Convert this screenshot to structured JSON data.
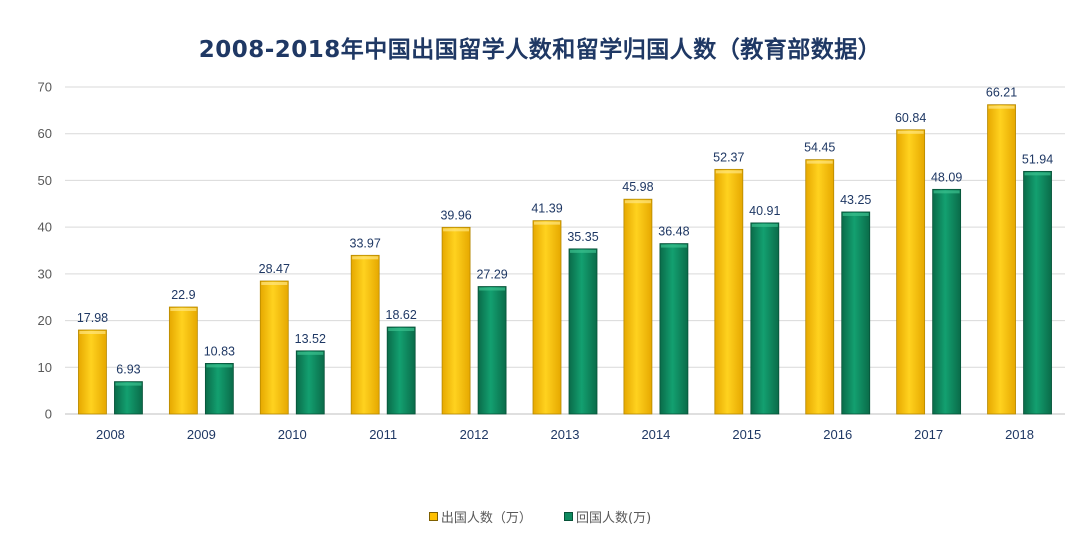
{
  "chart_data": {
    "type": "bar",
    "title": "2008-2018年中国出国留学人数和留学归国人数（教育部数据）",
    "categories": [
      "2008",
      "2009",
      "2010",
      "2011",
      "2012",
      "2013",
      "2014",
      "2015",
      "2016",
      "2017",
      "2018"
    ],
    "series": [
      {
        "name": "出国人数（万）",
        "color": "#FFC000",
        "values": [
          17.98,
          22.9,
          28.47,
          33.97,
          39.96,
          41.39,
          45.98,
          52.37,
          54.45,
          60.84,
          66.21
        ],
        "labels": [
          "17.98",
          "22.9",
          "28.47",
          "33.97",
          "39.96",
          "41.39",
          "45.98",
          "52.37",
          "54.45",
          "60.84",
          "66.21"
        ]
      },
      {
        "name": "回国人数(万)",
        "color": "#0E8A5F",
        "values": [
          6.93,
          10.83,
          13.52,
          18.62,
          27.29,
          35.35,
          36.48,
          40.91,
          43.25,
          48.09,
          51.94
        ],
        "labels": [
          "6.93",
          "10.83",
          "13.52",
          "18.62",
          "27.29",
          "35.35",
          "36.48",
          "40.91",
          "43.25",
          "48.09",
          "51.94"
        ]
      }
    ],
    "ylim": [
      0,
      70
    ],
    "yticks": [
      "0",
      "10",
      "20",
      "30",
      "40",
      "50",
      "60",
      "70"
    ],
    "xlabel": "",
    "ylabel": "",
    "grid": true,
    "legend_position": "bottom"
  }
}
